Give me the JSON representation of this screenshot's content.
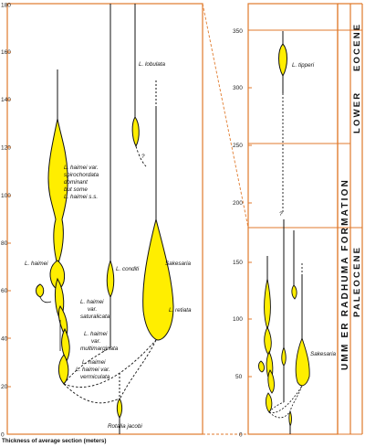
{
  "colors": {
    "frame": "#e07a2c",
    "fill": "#ffee00",
    "stroke": "#111111",
    "connector": "#e07a2c"
  },
  "left_panel": {
    "x_caption": "Thickness of average section (meters)",
    "ticks": [
      "0",
      "20",
      "40",
      "60",
      "80",
      "100",
      "120",
      "140",
      "160",
      "180"
    ],
    "labels": {
      "spirochordata": [
        "L. haimei var.",
        "spirochordata",
        "dominant",
        "but some",
        "L. haimei s.s."
      ],
      "haimei": "L. haimei",
      "conditi": "L. conditi",
      "lobulata": "L. lobulata",
      "sakesaria": "Sakesaria",
      "retiata": "L. retiata",
      "saturalicata": [
        "L. haimei",
        "var.",
        "saturalicata"
      ],
      "multimarginata": [
        "L. haimei",
        "var.",
        "multimarginata"
      ],
      "haimei2": "L. haimei",
      "vermiculata": [
        "L. haimei var.",
        "vermiculata"
      ],
      "rotalia": "Rotalia jacobi"
    }
  },
  "right_panel": {
    "ticks": [
      "0",
      "50",
      "100",
      "150",
      "200",
      "250",
      "300",
      "350"
    ],
    "labels": {
      "tipperi": "L. tipperi",
      "sakesaria": "Sakesaria"
    }
  },
  "stratigraphy": {
    "formation": "UMM ER RADHUMA FORMATION",
    "lower": "LOWER",
    "eocene": "EOCENE",
    "paleocene": "PALEOCENE"
  }
}
